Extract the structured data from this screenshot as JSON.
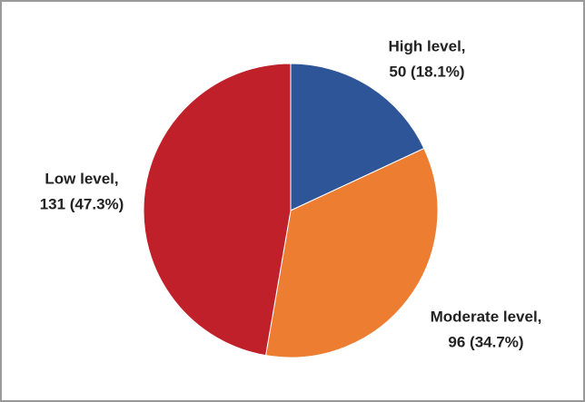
{
  "chart_data": {
    "type": "pie",
    "categories": [
      "High level,",
      "Moderate level,",
      "Low level,"
    ],
    "values": [
      50,
      96,
      131
    ],
    "value_labels": [
      "50 (18.1%)",
      "96 (34.7%)",
      "131 (47.3%)"
    ],
    "colors": [
      "#2e5597",
      "#ed7d31",
      "#c0202a"
    ]
  }
}
